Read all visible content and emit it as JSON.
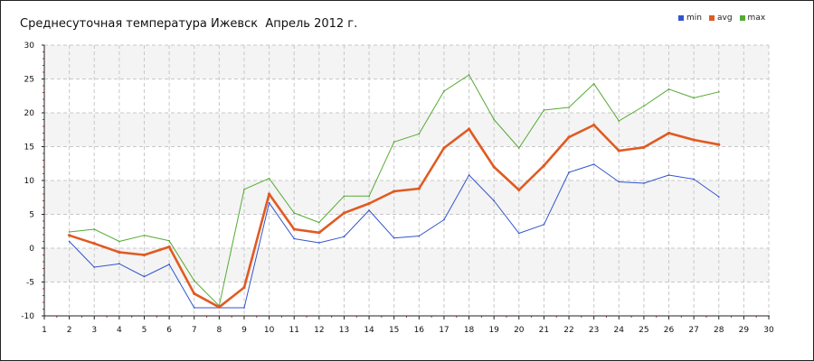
{
  "chart_data": {
    "type": "line",
    "title": "Среднесуточная температура Ижевск  Апрель 2012 г.",
    "xlabel": "",
    "ylabel": "",
    "xlim": [
      1,
      30
    ],
    "ylim": [
      -10,
      30
    ],
    "x_ticks": [
      1,
      2,
      3,
      4,
      5,
      6,
      7,
      8,
      9,
      10,
      11,
      12,
      13,
      14,
      15,
      16,
      17,
      18,
      19,
      20,
      21,
      22,
      23,
      24,
      25,
      26,
      27,
      28,
      29,
      30
    ],
    "y_ticks": [
      -10,
      -5,
      0,
      5,
      10,
      15,
      20,
      25,
      30
    ],
    "grid": true,
    "legend_position": "top-right",
    "x": [
      2,
      3,
      4,
      5,
      6,
      7,
      8,
      9,
      10,
      11,
      12,
      13,
      14,
      15,
      16,
      17,
      18,
      19,
      20,
      21,
      22,
      23,
      24,
      25,
      26,
      27,
      28
    ],
    "series": [
      {
        "name": "min",
        "color": "#3355cc",
        "values": [
          1.0,
          -2.8,
          -2.3,
          -4.2,
          -2.4,
          -8.8,
          -8.8,
          -8.8,
          6.7,
          1.4,
          0.8,
          1.7,
          5.6,
          1.5,
          1.8,
          4.2,
          10.8,
          7.0,
          2.2,
          3.5,
          11.2,
          12.4,
          9.8,
          9.6,
          10.8,
          10.2,
          7.6
        ]
      },
      {
        "name": "avg",
        "color": "#e05a22",
        "values": [
          1.9,
          0.7,
          -0.6,
          -1.0,
          0.2,
          -6.7,
          -8.7,
          -5.8,
          8.0,
          2.8,
          2.3,
          5.2,
          6.6,
          8.4,
          8.8,
          14.8,
          17.6,
          12.0,
          8.6,
          12.2,
          16.4,
          18.2,
          14.4,
          14.9,
          17.0,
          16.0,
          15.3
        ]
      },
      {
        "name": "max",
        "color": "#55aa33",
        "values": [
          2.4,
          2.8,
          1.0,
          1.9,
          1.1,
          -4.8,
          -8.5,
          8.7,
          10.3,
          5.2,
          3.8,
          7.7,
          7.7,
          15.7,
          16.9,
          23.2,
          25.6,
          19.0,
          14.8,
          20.4,
          20.8,
          24.3,
          18.8,
          21.0,
          23.5,
          22.2,
          23.1
        ]
      }
    ]
  }
}
